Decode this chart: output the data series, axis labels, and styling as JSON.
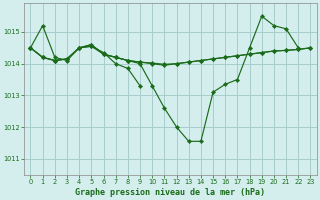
{
  "title": "Graphe pression niveau de la mer (hPa)",
  "background_color": "#d4eeee",
  "grid_color": "#a8cccc",
  "line_color": "#1a6b1a",
  "tick_color": "#1a6b1a",
  "xlim": [
    -0.5,
    23.5
  ],
  "ylim": [
    1010.5,
    1015.9
  ],
  "yticks": [
    1011,
    1012,
    1013,
    1014,
    1015
  ],
  "xticks": [
    0,
    1,
    2,
    3,
    4,
    5,
    6,
    7,
    8,
    9,
    10,
    11,
    12,
    13,
    14,
    15,
    16,
    17,
    18,
    19,
    20,
    21,
    22,
    23
  ],
  "series1": [
    1014.5,
    1014.2,
    1014.1,
    1014.15,
    1014.5,
    1014.55,
    1014.3,
    1014.2,
    1014.1,
    1014.05,
    1014.02,
    1013.98,
    1014.0,
    1014.05,
    1014.1,
    1014.15,
    1014.2,
    1014.25,
    1014.3,
    1014.35,
    1014.4,
    1014.42,
    1014.45,
    1014.5
  ],
  "series2": [
    1014.5,
    1014.2,
    1014.1,
    1014.15,
    1014.5,
    1014.55,
    1014.35,
    1014.0,
    1013.85,
    1013.3,
    null,
    null,
    null,
    null,
    null,
    null,
    null,
    null,
    null,
    null,
    null,
    null,
    null,
    null
  ],
  "series3": [
    1014.5,
    1015.2,
    1014.2,
    1014.1,
    1014.5,
    1014.6,
    1014.3,
    1014.2,
    1014.1,
    1014.05,
    1014.0,
    1013.95,
    1014.0,
    1014.05,
    1014.1,
    1014.15,
    1014.2,
    1014.25,
    1014.3,
    1014.35,
    1014.4,
    1014.42,
    1014.45,
    1014.5
  ],
  "series4": [
    1014.5,
    1014.2,
    1014.1,
    1014.15,
    1014.5,
    1014.6,
    1014.3,
    1014.2,
    1014.1,
    1014.0,
    1013.3,
    1012.6,
    1012.0,
    1011.55,
    1011.55,
    1013.1,
    1013.35,
    1013.5,
    1014.5,
    1015.5,
    1015.2,
    1015.1,
    1014.5,
    null
  ]
}
